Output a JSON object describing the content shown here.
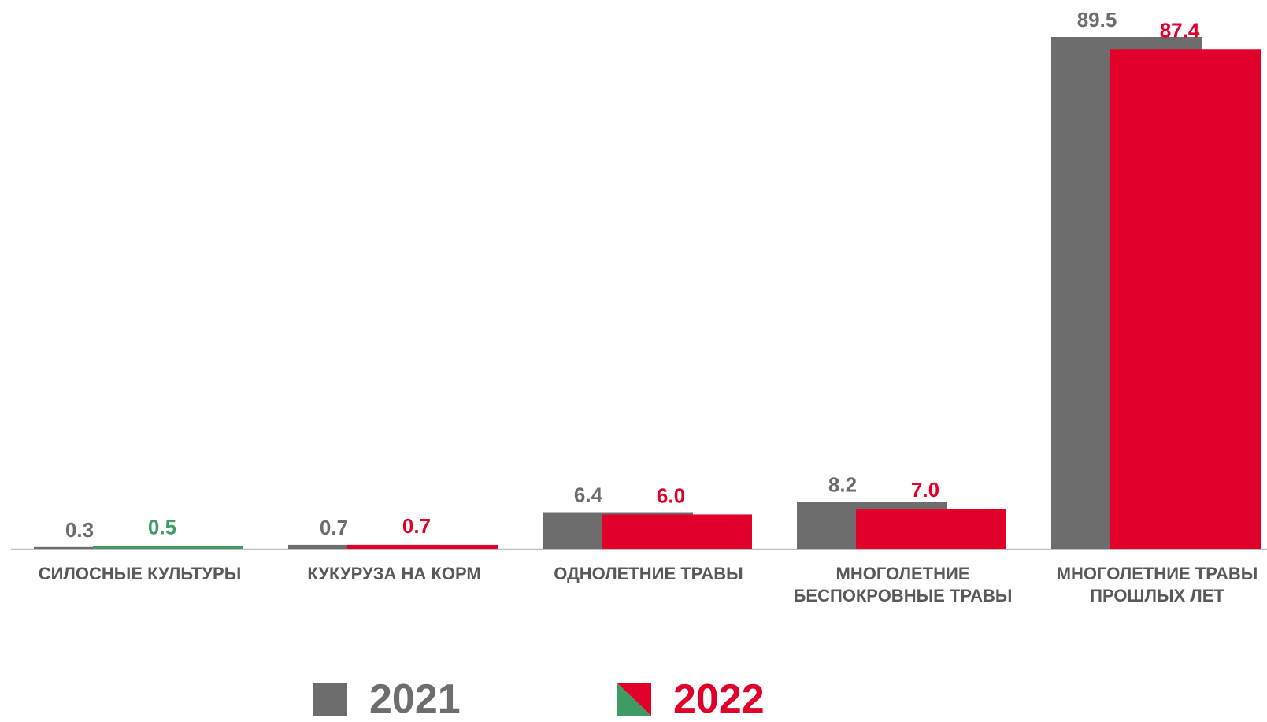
{
  "chart_data": {
    "type": "bar",
    "categories": [
      [
        "СИЛОСНЫЕ КУЛЬТУРЫ"
      ],
      [
        "КУКУРУЗА НА КОРМ"
      ],
      [
        "ОДНОЛЕТНИЕ ТРАВЫ"
      ],
      [
        "МНОГОЛЕТНИЕ",
        "БЕСПОКРОВНЫЕ ТРАВЫ"
      ],
      [
        "МНОГОЛЕТНИЕ ТРАВЫ",
        "ПРОШЛЫХ ЛЕТ"
      ]
    ],
    "series": [
      {
        "name": "2021",
        "values": [
          0.3,
          0.7,
          6.4,
          8.2,
          89.5
        ],
        "labels": [
          "0.3",
          "0.7",
          "6.4",
          "8.2",
          "89.5"
        ],
        "colors": [
          "#6d6d6d",
          "#6d6d6d",
          "#6d6d6d",
          "#6d6d6d",
          "#6d6d6d"
        ]
      },
      {
        "name": "2022",
        "values": [
          0.5,
          0.7,
          6.0,
          7.0,
          87.4
        ],
        "labels": [
          "0.5",
          "0.7",
          "6.0",
          "7.0",
          "87.4"
        ],
        "colors": [
          "#3f9a64",
          "#e0002a",
          "#e0002a",
          "#e0002a",
          "#e0002a"
        ]
      }
    ],
    "legend": {
      "placement": "bottom"
    },
    "grid": false
  },
  "colors": {
    "grey": "#6d6d6d",
    "red": "#e0002a",
    "green": "#3f9a64",
    "axis": "#bfbfbf"
  }
}
